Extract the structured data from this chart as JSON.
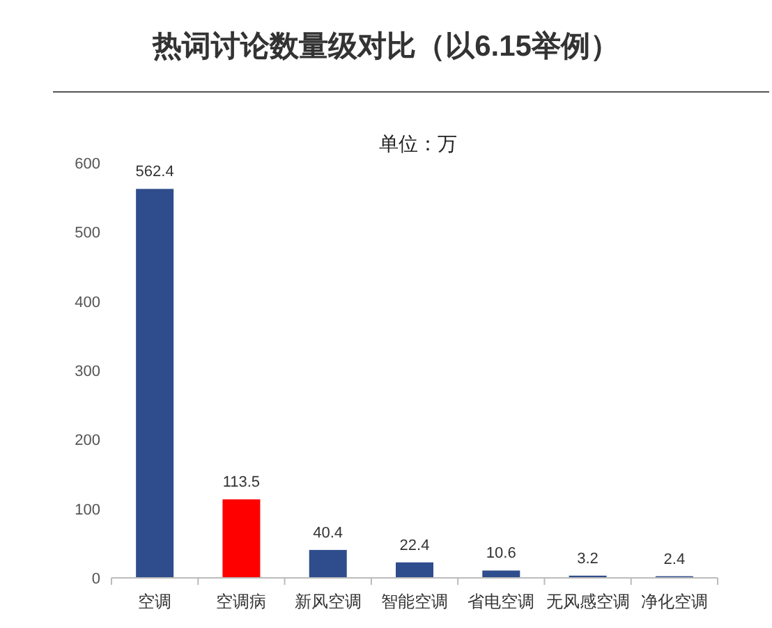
{
  "chart_data": {
    "type": "bar",
    "title": "热词讨论数量级对比（以6.15举例）",
    "annotations": [
      "单位：万"
    ],
    "categories": [
      "空调",
      "空调病",
      "新风空调",
      "智能空调",
      "省电空调",
      "无风感空调",
      "净化空调"
    ],
    "values": [
      562.4,
      113.5,
      40.4,
      22.4,
      10.6,
      3.2,
      2.4
    ],
    "colors": [
      "#2f4d8c",
      "#ff0000",
      "#2f4d8c",
      "#2f4d8c",
      "#2f4d8c",
      "#2f4d8c",
      "#2f4d8c"
    ],
    "ylim": [
      0,
      600
    ],
    "yticks": [
      0,
      100,
      200,
      300,
      400,
      500,
      600
    ],
    "data_labels": true,
    "grid": false
  }
}
